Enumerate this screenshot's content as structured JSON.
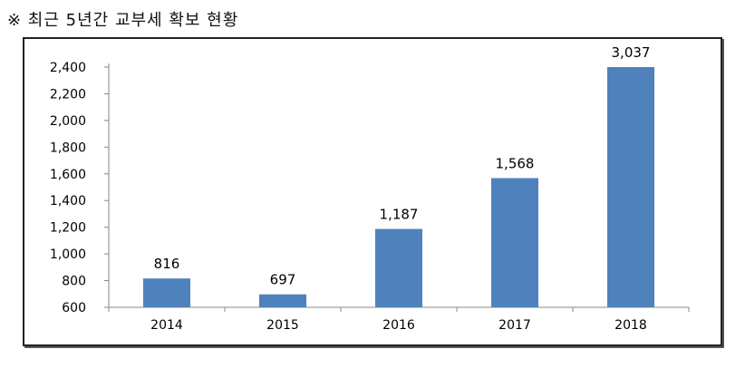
{
  "header": {
    "title": "※ 최근 5년간 교부세 확보 현황"
  },
  "chart_data": {
    "type": "bar",
    "title": "",
    "xlabel": "",
    "ylabel": "",
    "categories": [
      "2014",
      "2015",
      "2016",
      "2017",
      "2018"
    ],
    "values": [
      816,
      697,
      1187,
      1568,
      3037
    ],
    "data_labels": [
      "816",
      "697",
      "1,187",
      "1,568",
      "3,037"
    ],
    "ylim": [
      600,
      2400
    ],
    "yticks": [
      600,
      800,
      1000,
      1200,
      1400,
      1600,
      1800,
      2000,
      2200,
      2400
    ],
    "ytick_labels": [
      "600",
      "800",
      "1,000",
      "1,200",
      "1,400",
      "1,600",
      "1,800",
      "2,000",
      "2,200",
      "2,400"
    ],
    "grid": false,
    "legend": "none",
    "bar_color": "#4f81bd"
  }
}
